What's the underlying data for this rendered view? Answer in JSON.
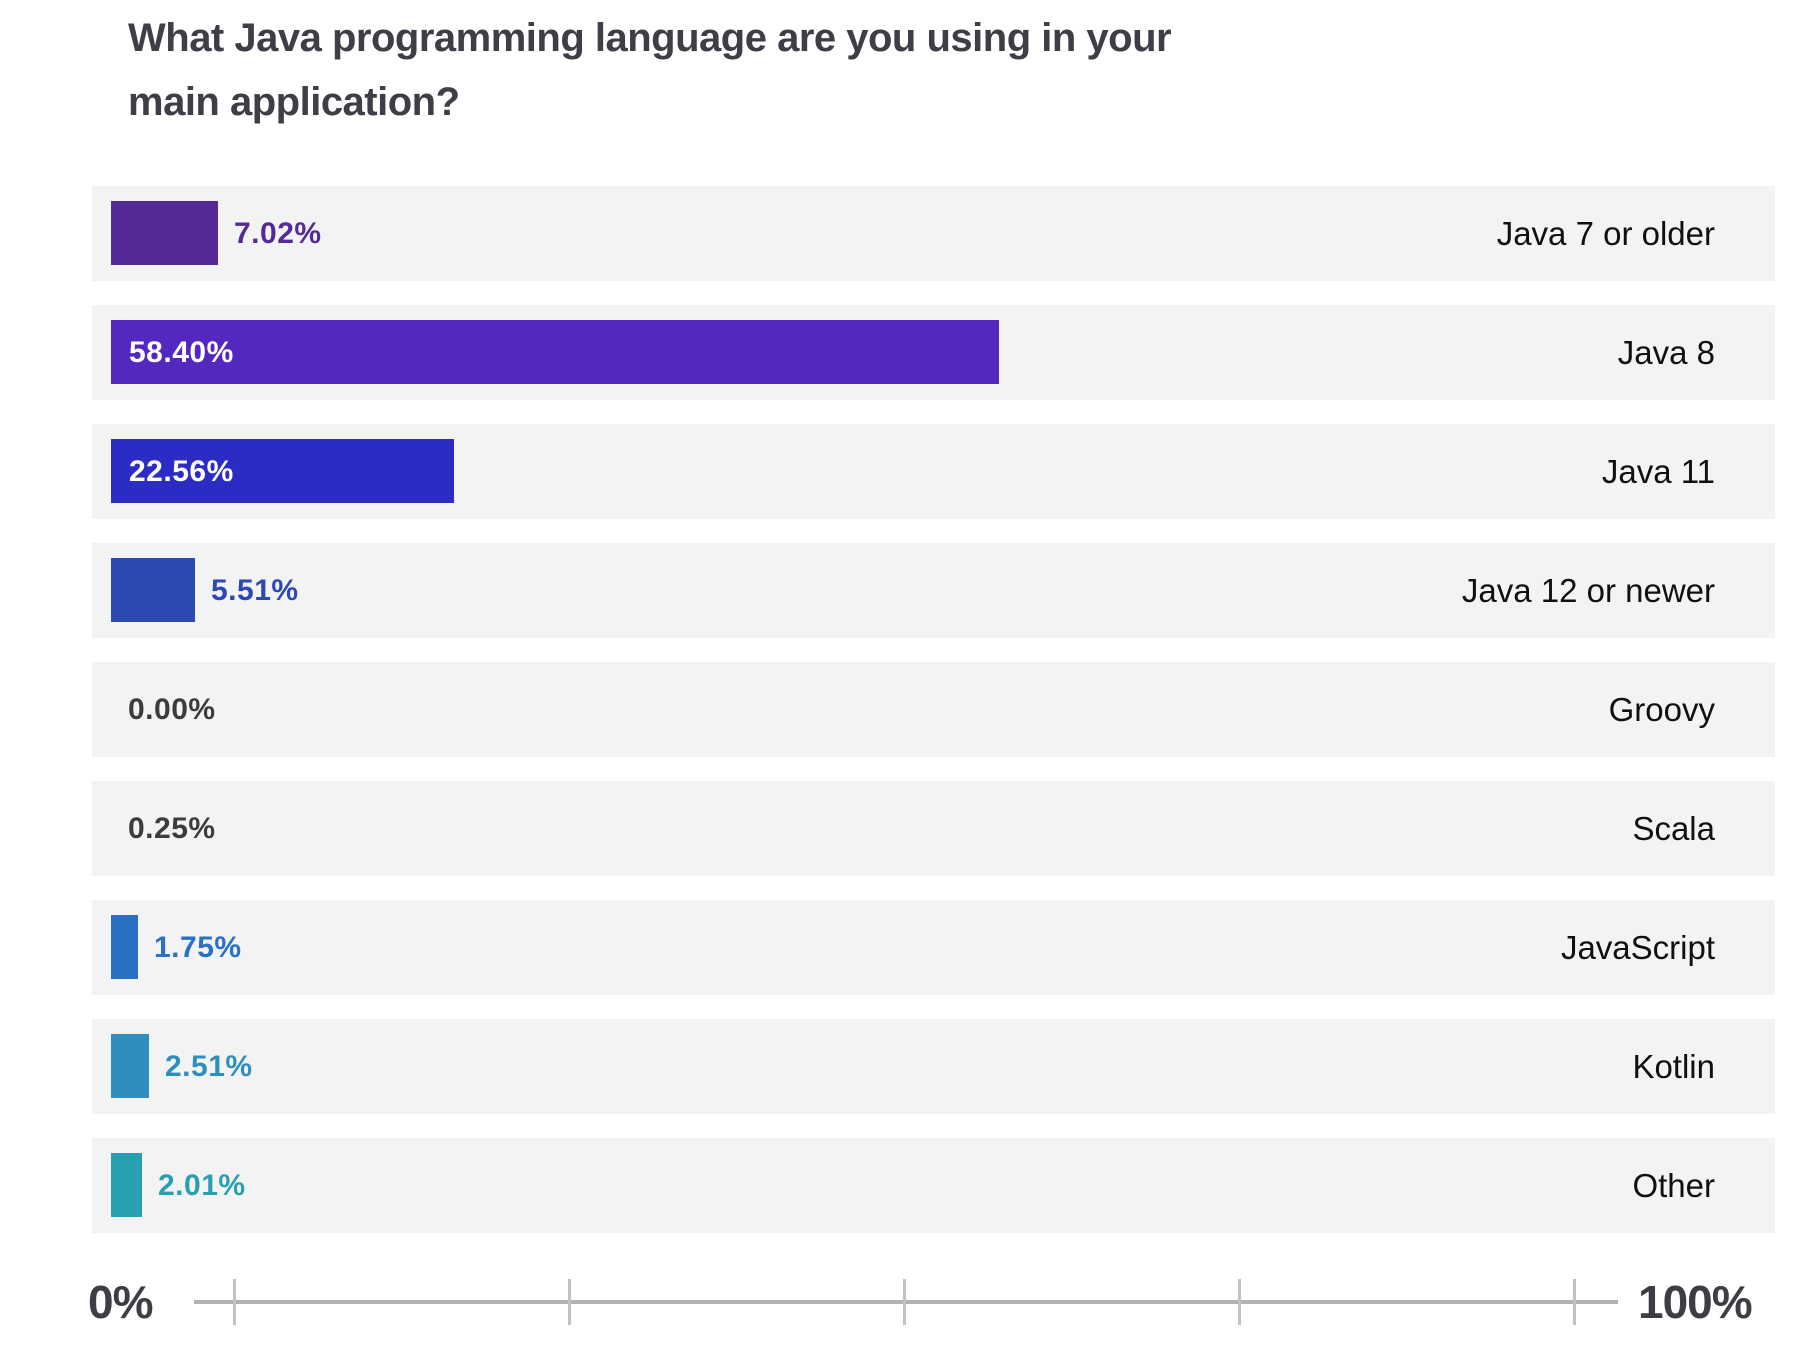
{
  "title_lines": [
    "What Java programming language are you using in your",
    "main application?"
  ],
  "chart_data": {
    "type": "bar",
    "orientation": "horizontal",
    "title": "What Java programming language are you using in your main application?",
    "categories": [
      "Java 7 or older",
      "Java 8",
      "Java 11",
      "Java 12 or newer",
      "Groovy",
      "Scala",
      "JavaScript",
      "Kotlin",
      "Other"
    ],
    "values": [
      7.02,
      58.4,
      22.56,
      5.51,
      0.0,
      0.25,
      1.75,
      2.51,
      2.01
    ],
    "value_labels": [
      "7.02%",
      "58.40%",
      "22.56%",
      "5.51%",
      "0.00%",
      "0.25%",
      "1.75%",
      "2.51%",
      "2.01%"
    ],
    "bar_colors": [
      "#542a96",
      "#5328c0",
      "#2c2cc4",
      "#2a49b2",
      null,
      null,
      "#2a70c4",
      "#2e8fbf",
      "#29a0b0"
    ],
    "value_label_colors": [
      "#542a96",
      "#ffffff",
      "#ffffff",
      "#2a49b2",
      "#3c3c3c",
      "#3c3c3c",
      "#2a70c4",
      "#2e8fbf",
      "#29a0b0"
    ],
    "xlabel": "",
    "ylabel": "",
    "xlim": [
      0,
      100
    ],
    "x_tick_labels": [
      "0%",
      "100%"
    ],
    "x_tick_marks_count": 5,
    "grid": false,
    "legend": false,
    "row_background": "#f3f3f4"
  },
  "axis": {
    "left_label": "0%",
    "right_label": "100%"
  },
  "style": {
    "title_color": "#3e3e46",
    "category_color": "#101010",
    "axis_text_color": "#3d3d44",
    "axis_line_color": "#b2b2b2",
    "tick_color": "#c2c2c2"
  }
}
